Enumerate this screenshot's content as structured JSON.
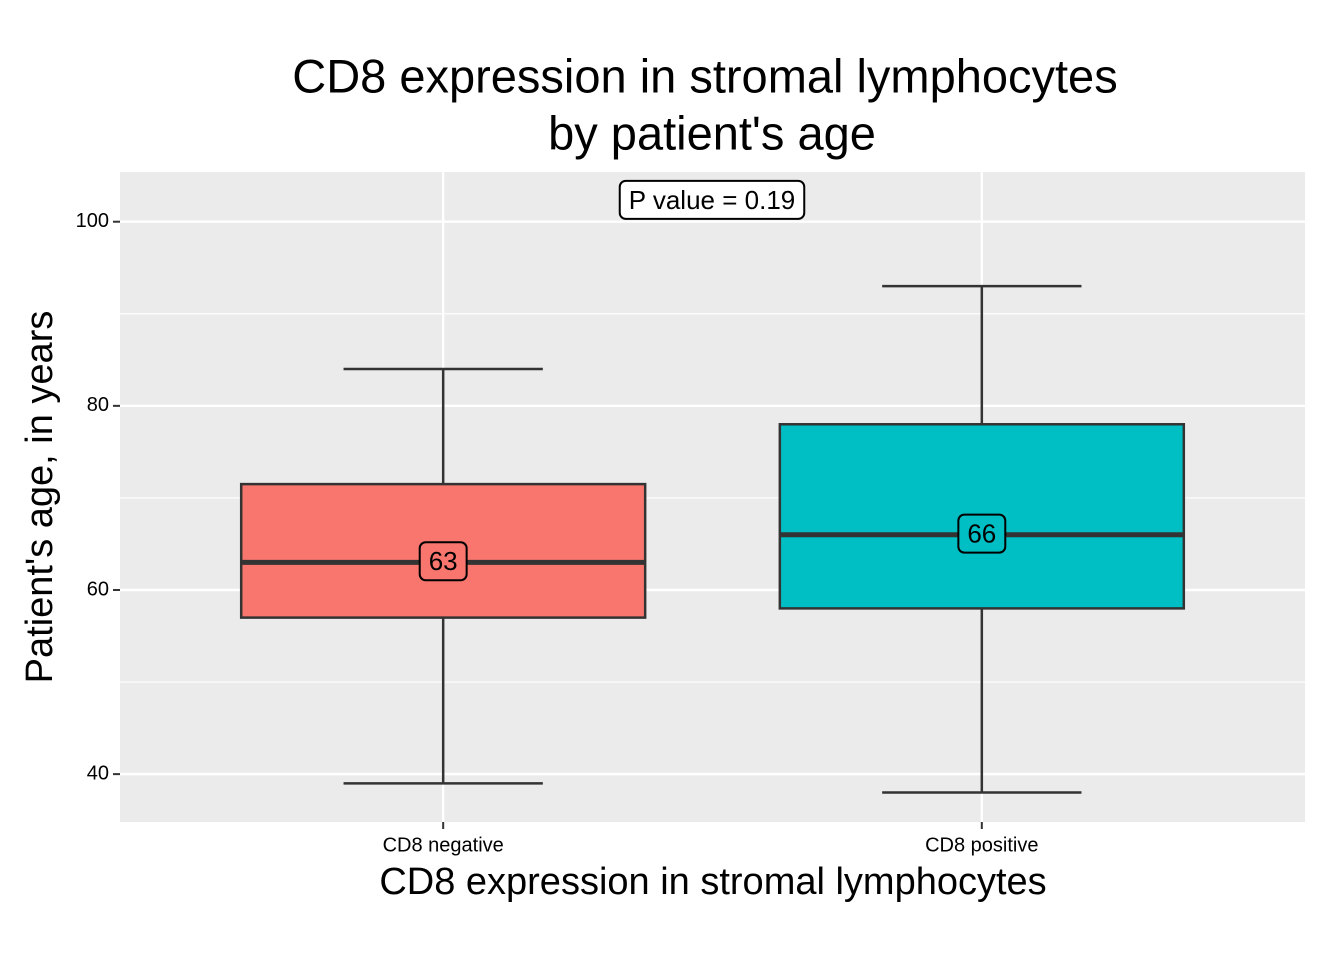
{
  "chart_data": {
    "type": "box",
    "title": [
      "CD8 expression in stromal lymphocytes",
      "by patient's age"
    ],
    "x_label": "CD8 expression in stromal lymphocytes",
    "y_label": "Patient's age, in years",
    "annotation": "P value = 0.19",
    "categories": [
      "CD8 negative",
      "CD8 positive"
    ],
    "colors": [
      "#f8766d",
      "#00bfc4"
    ],
    "low": [
      39,
      38
    ],
    "q1": [
      57,
      58
    ],
    "median": [
      63,
      66
    ],
    "q3": [
      71.5,
      78
    ],
    "high": [
      84,
      93
    ],
    "ylim": [
      34.8,
      105.4
    ],
    "yticks": [
      40,
      60,
      80,
      100
    ],
    "y_minor_ticks": [
      50,
      70,
      90
    ],
    "grid": true
  }
}
